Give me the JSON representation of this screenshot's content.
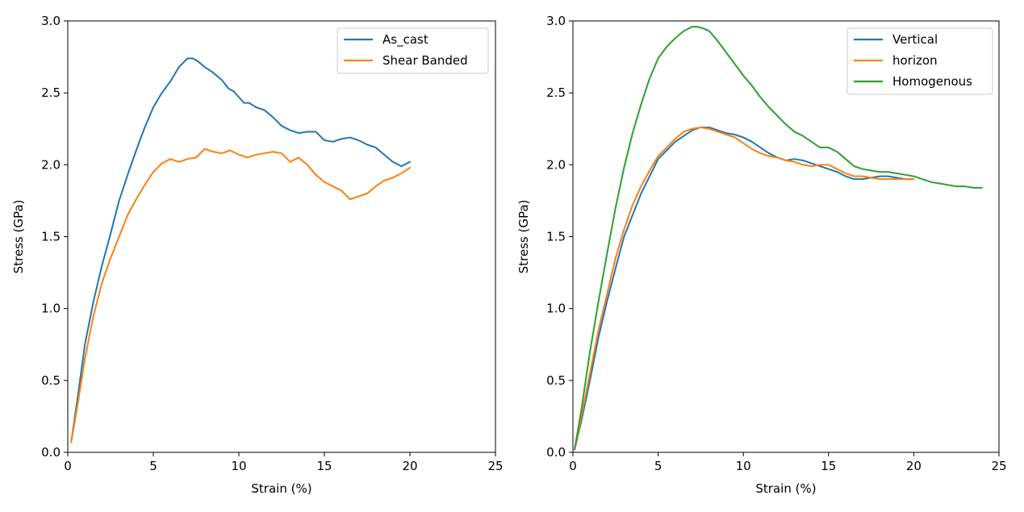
{
  "chart_data": [
    {
      "type": "line",
      "title": "",
      "xlabel": "Strain (%)",
      "ylabel": "Stress (GPa)",
      "xlim": [
        0,
        25
      ],
      "ylim": [
        0,
        3.0
      ],
      "xticks": [
        "0",
        "5",
        "10",
        "15",
        "20",
        "25"
      ],
      "yticks": [
        "0.0",
        "0.5",
        "1.0",
        "1.5",
        "2.0",
        "2.5",
        "3.0"
      ],
      "grid": false,
      "legend": "upper right",
      "series": [
        {
          "name": "As_cast",
          "color": "#1f77b4",
          "x": [
            0.2,
            0.6,
            1.0,
            1.5,
            2.0,
            2.5,
            3.0,
            3.5,
            4.0,
            4.5,
            5.0,
            5.5,
            6.0,
            6.5,
            7.0,
            7.3,
            7.6,
            8.0,
            8.5,
            9.0,
            9.4,
            9.7,
            10.0,
            10.3,
            10.6,
            11.0,
            11.5,
            12.0,
            12.5,
            13.0,
            13.5,
            14.0,
            14.5,
            15.0,
            15.5,
            16.0,
            16.5,
            17.0,
            17.5,
            18.0,
            18.5,
            19.0,
            19.5,
            20.0
          ],
          "y": [
            0.07,
            0.4,
            0.75,
            1.05,
            1.3,
            1.52,
            1.75,
            1.93,
            2.1,
            2.26,
            2.4,
            2.5,
            2.58,
            2.68,
            2.74,
            2.74,
            2.72,
            2.68,
            2.64,
            2.59,
            2.53,
            2.51,
            2.47,
            2.43,
            2.43,
            2.4,
            2.38,
            2.33,
            2.27,
            2.24,
            2.22,
            2.23,
            2.23,
            2.17,
            2.16,
            2.18,
            2.19,
            2.17,
            2.14,
            2.12,
            2.07,
            2.02,
            1.99,
            2.02
          ]
        },
        {
          "name": "Shear Banded",
          "color": "#ff7f0e",
          "x": [
            0.2,
            0.6,
            1.0,
            1.5,
            2.0,
            2.5,
            3.0,
            3.5,
            4.0,
            4.5,
            5.0,
            5.5,
            6.0,
            6.5,
            7.0,
            7.5,
            8.0,
            8.5,
            9.0,
            9.5,
            10.0,
            10.5,
            11.0,
            11.5,
            12.0,
            12.5,
            13.0,
            13.5,
            14.0,
            14.5,
            15.0,
            15.5,
            16.0,
            16.5,
            17.0,
            17.5,
            18.0,
            18.5,
            19.0,
            19.5,
            20.0
          ],
          "y": [
            0.07,
            0.35,
            0.65,
            0.95,
            1.18,
            1.35,
            1.5,
            1.65,
            1.76,
            1.86,
            1.95,
            2.01,
            2.04,
            2.02,
            2.04,
            2.05,
            2.11,
            2.09,
            2.08,
            2.1,
            2.07,
            2.05,
            2.07,
            2.08,
            2.09,
            2.08,
            2.02,
            2.05,
            2.0,
            1.93,
            1.88,
            1.85,
            1.82,
            1.76,
            1.78,
            1.8,
            1.85,
            1.89,
            1.91,
            1.94,
            1.98
          ]
        }
      ]
    },
    {
      "type": "line",
      "title": "",
      "xlabel": "Strain (%)",
      "ylabel": "Stress (GPa)",
      "xlim": [
        0,
        25
      ],
      "ylim": [
        0,
        3.0
      ],
      "xticks": [
        "0",
        "5",
        "10",
        "15",
        "20",
        "25"
      ],
      "yticks": [
        "0.0",
        "0.5",
        "1.0",
        "1.5",
        "2.0",
        "2.5",
        "3.0"
      ],
      "grid": false,
      "legend": "upper right",
      "series": [
        {
          "name": "Vertical",
          "color": "#1f77b4",
          "x": [
            0.1,
            0.5,
            1.0,
            1.5,
            2.0,
            2.5,
            3.0,
            3.5,
            4.0,
            4.5,
            5.0,
            5.5,
            6.0,
            6.5,
            7.0,
            7.5,
            8.0,
            8.5,
            9.0,
            9.5,
            10.0,
            10.5,
            11.0,
            11.5,
            12.0,
            12.5,
            13.0,
            13.5,
            14.0,
            14.5,
            15.0,
            15.5,
            16.0,
            16.5,
            17.0,
            17.5,
            18.0,
            18.5,
            19.0,
            19.5,
            20.0
          ],
          "y": [
            0.02,
            0.22,
            0.5,
            0.8,
            1.05,
            1.28,
            1.5,
            1.65,
            1.8,
            1.92,
            2.04,
            2.1,
            2.16,
            2.2,
            2.24,
            2.26,
            2.26,
            2.24,
            2.22,
            2.21,
            2.19,
            2.16,
            2.12,
            2.08,
            2.05,
            2.03,
            2.04,
            2.03,
            2.01,
            1.99,
            1.97,
            1.95,
            1.92,
            1.9,
            1.9,
            1.91,
            1.92,
            1.92,
            1.91,
            1.9,
            1.9
          ]
        },
        {
          "name": "horizon",
          "color": "#ff7f0e",
          "x": [
            0.1,
            0.5,
            1.0,
            1.5,
            2.0,
            2.5,
            3.0,
            3.5,
            4.0,
            4.5,
            5.0,
            5.5,
            6.0,
            6.5,
            7.0,
            7.5,
            8.0,
            8.5,
            9.0,
            9.5,
            10.0,
            10.5,
            11.0,
            11.5,
            12.0,
            12.5,
            13.0,
            13.5,
            14.0,
            14.5,
            15.0,
            15.5,
            16.0,
            16.5,
            17.0,
            17.5,
            18.0,
            18.5,
            19.0,
            19.5,
            20.0
          ],
          "y": [
            0.02,
            0.25,
            0.55,
            0.85,
            1.1,
            1.35,
            1.55,
            1.72,
            1.85,
            1.96,
            2.06,
            2.12,
            2.18,
            2.23,
            2.25,
            2.26,
            2.25,
            2.23,
            2.21,
            2.19,
            2.15,
            2.11,
            2.08,
            2.06,
            2.05,
            2.03,
            2.02,
            2.0,
            1.99,
            2.0,
            2.0,
            1.97,
            1.94,
            1.92,
            1.92,
            1.91,
            1.9,
            1.9,
            1.9,
            1.9,
            1.9
          ]
        },
        {
          "name": "Homogenous",
          "color": "#2ca02c",
          "x": [
            0.1,
            0.5,
            1.0,
            1.5,
            2.0,
            2.5,
            3.0,
            3.5,
            4.0,
            4.5,
            5.0,
            5.5,
            6.0,
            6.5,
            7.0,
            7.3,
            7.6,
            8.0,
            8.5,
            9.0,
            9.5,
            10.0,
            10.5,
            11.0,
            11.5,
            12.0,
            12.5,
            13.0,
            13.5,
            14.0,
            14.5,
            15.0,
            15.5,
            16.0,
            16.5,
            17.0,
            17.5,
            18.0,
            18.5,
            19.0,
            19.5,
            20.0,
            20.5,
            21.0,
            21.5,
            22.0,
            22.5,
            23.0,
            23.5,
            24.0
          ],
          "y": [
            0.02,
            0.3,
            0.7,
            1.05,
            1.38,
            1.7,
            1.98,
            2.22,
            2.42,
            2.6,
            2.74,
            2.82,
            2.88,
            2.93,
            2.96,
            2.96,
            2.95,
            2.93,
            2.86,
            2.78,
            2.7,
            2.62,
            2.55,
            2.47,
            2.4,
            2.34,
            2.28,
            2.23,
            2.2,
            2.16,
            2.12,
            2.12,
            2.09,
            2.04,
            1.99,
            1.97,
            1.96,
            1.95,
            1.95,
            1.94,
            1.93,
            1.92,
            1.9,
            1.88,
            1.87,
            1.86,
            1.85,
            1.85,
            1.84,
            1.84
          ]
        }
      ]
    }
  ]
}
